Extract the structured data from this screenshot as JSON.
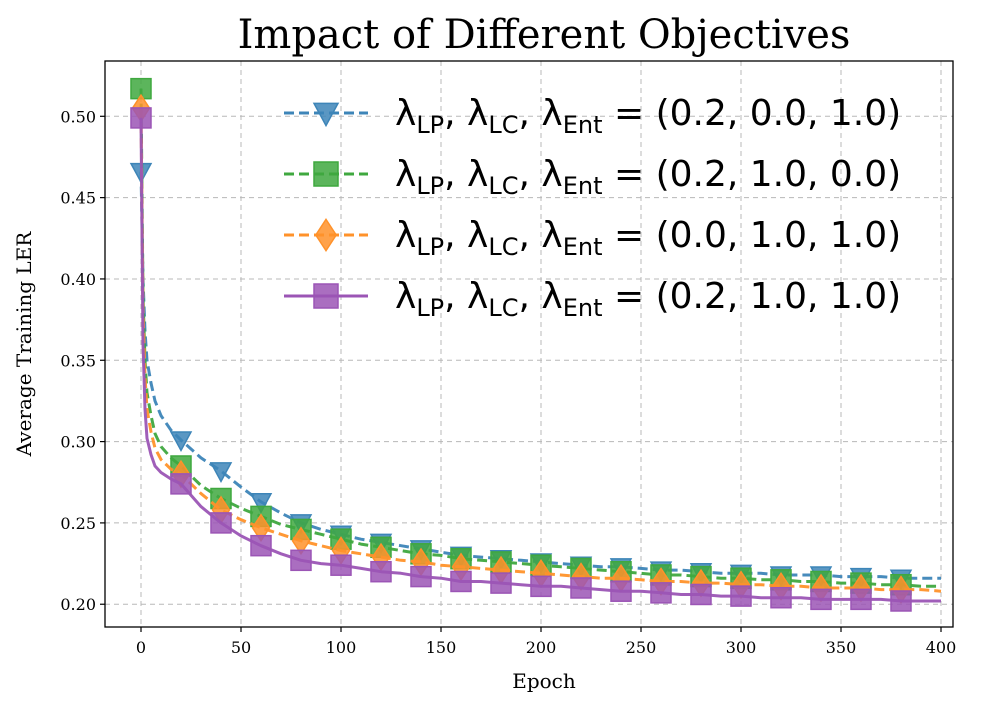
{
  "chart_data": {
    "type": "line",
    "title": "Impact of Different Objectives",
    "xlabel": "Epoch",
    "ylabel": "Average Training LER",
    "xlim": [
      -18,
      406
    ],
    "ylim": [
      0.186,
      0.534
    ],
    "xticks": [
      0,
      50,
      100,
      150,
      200,
      250,
      300,
      350,
      400
    ],
    "yticks": [
      0.2,
      0.25,
      0.3,
      0.35,
      0.4,
      0.45,
      0.5
    ],
    "grid": true,
    "legend_position": "top-right",
    "x": [
      0,
      1,
      2,
      3,
      5,
      7,
      10,
      15,
      20,
      30,
      40,
      50,
      60,
      70,
      80,
      90,
      100,
      110,
      120,
      130,
      140,
      150,
      160,
      170,
      180,
      190,
      200,
      210,
      220,
      230,
      240,
      250,
      260,
      270,
      280,
      290,
      300,
      310,
      320,
      330,
      340,
      350,
      360,
      370,
      380,
      390,
      400
    ],
    "marker_x": [
      0,
      20,
      40,
      60,
      80,
      100,
      120,
      140,
      160,
      180,
      200,
      220,
      240,
      260,
      280,
      300,
      320,
      340,
      360,
      380
    ],
    "series": [
      {
        "name": "(0.2, 0.0, 1.0)",
        "color": "#3d85b8",
        "linestyle": "dashed",
        "marker": "triangle-down",
        "values": [
          0.466,
          0.4,
          0.368,
          0.35,
          0.336,
          0.325,
          0.316,
          0.307,
          0.301,
          0.29,
          0.282,
          0.272,
          0.263,
          0.256,
          0.25,
          0.246,
          0.243,
          0.24,
          0.238,
          0.236,
          0.234,
          0.232,
          0.23,
          0.229,
          0.228,
          0.227,
          0.226,
          0.225,
          0.224,
          0.223,
          0.223,
          0.222,
          0.221,
          0.221,
          0.22,
          0.219,
          0.219,
          0.219,
          0.218,
          0.218,
          0.218,
          0.217,
          0.217,
          0.217,
          0.216,
          0.216,
          0.216
        ]
      },
      {
        "name": "(0.2, 1.0, 0.0)",
        "color": "#3fa83f",
        "linestyle": "dashed",
        "marker": "square",
        "values": [
          0.517,
          0.39,
          0.35,
          0.33,
          0.316,
          0.305,
          0.297,
          0.29,
          0.285,
          0.273,
          0.265,
          0.259,
          0.254,
          0.249,
          0.246,
          0.243,
          0.24,
          0.237,
          0.235,
          0.233,
          0.231,
          0.23,
          0.228,
          0.227,
          0.226,
          0.225,
          0.224,
          0.223,
          0.222,
          0.221,
          0.22,
          0.219,
          0.218,
          0.218,
          0.217,
          0.216,
          0.216,
          0.215,
          0.215,
          0.214,
          0.214,
          0.213,
          0.213,
          0.212,
          0.212,
          0.211,
          0.211
        ]
      },
      {
        "name": "(0.0, 1.0, 1.0)",
        "color": "#ff922a",
        "linestyle": "dashed",
        "marker": "diamond",
        "values": [
          0.505,
          0.38,
          0.34,
          0.32,
          0.306,
          0.296,
          0.289,
          0.283,
          0.28,
          0.268,
          0.258,
          0.252,
          0.247,
          0.243,
          0.239,
          0.236,
          0.233,
          0.231,
          0.229,
          0.227,
          0.226,
          0.224,
          0.223,
          0.222,
          0.221,
          0.22,
          0.219,
          0.218,
          0.217,
          0.216,
          0.216,
          0.215,
          0.214,
          0.214,
          0.213,
          0.213,
          0.212,
          0.212,
          0.211,
          0.211,
          0.21,
          0.21,
          0.21,
          0.209,
          0.209,
          0.209,
          0.208
        ]
      },
      {
        "name": "(0.2, 1.0, 1.0)",
        "color": "#9b55b5",
        "linestyle": "solid",
        "marker": "square",
        "values": [
          0.499,
          0.36,
          0.32,
          0.302,
          0.292,
          0.285,
          0.281,
          0.277,
          0.274,
          0.26,
          0.25,
          0.242,
          0.236,
          0.231,
          0.227,
          0.225,
          0.224,
          0.222,
          0.22,
          0.219,
          0.217,
          0.216,
          0.214,
          0.214,
          0.213,
          0.212,
          0.211,
          0.211,
          0.21,
          0.209,
          0.208,
          0.208,
          0.207,
          0.206,
          0.206,
          0.205,
          0.205,
          0.204,
          0.204,
          0.204,
          0.203,
          0.203,
          0.203,
          0.203,
          0.202,
          0.202,
          0.202
        ]
      }
    ]
  }
}
